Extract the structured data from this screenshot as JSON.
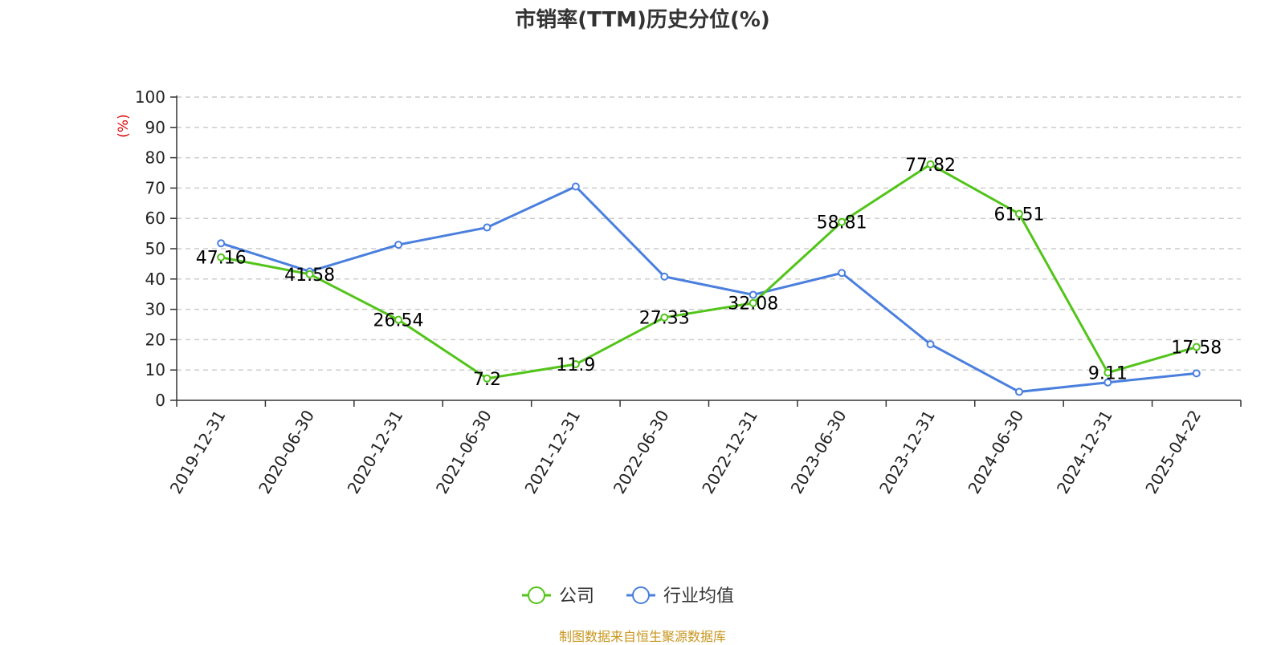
{
  "chart_data": {
    "type": "line",
    "title": "市销率(TTM)历史分位(%)",
    "ylabel": "(%)",
    "xlabel": "",
    "ylim": [
      0,
      100
    ],
    "yticks": [
      0,
      10,
      20,
      30,
      40,
      50,
      60,
      70,
      80,
      90,
      100
    ],
    "grid": true,
    "legend_position": "bottom",
    "categories": [
      "2019-12-31",
      "2020-06-30",
      "2020-12-31",
      "2021-06-30",
      "2021-12-31",
      "2022-06-30",
      "2022-12-31",
      "2023-06-30",
      "2023-12-31",
      "2024-06-30",
      "2024-12-31",
      "2025-04-22"
    ],
    "series": [
      {
        "name": "公司",
        "color": "#52c41a",
        "values": [
          47.16,
          41.58,
          26.54,
          7.2,
          11.9,
          27.33,
          32.08,
          58.81,
          77.82,
          61.51,
          9.11,
          17.58
        ],
        "labels": [
          "47.16",
          "41.58",
          "26.54",
          "7.2",
          "11.9",
          "27.33",
          "32.08",
          "58.81",
          "77.82",
          "61.51",
          "9.11",
          "17.58"
        ]
      },
      {
        "name": "行业均值",
        "color": "#4a7fde",
        "values": [
          51.8,
          42.5,
          51.3,
          57.0,
          70.5,
          40.8,
          34.8,
          42.0,
          18.5,
          2.8,
          5.9,
          8.9
        ]
      }
    ]
  },
  "source_note": "制图数据来自恒生聚源数据库"
}
